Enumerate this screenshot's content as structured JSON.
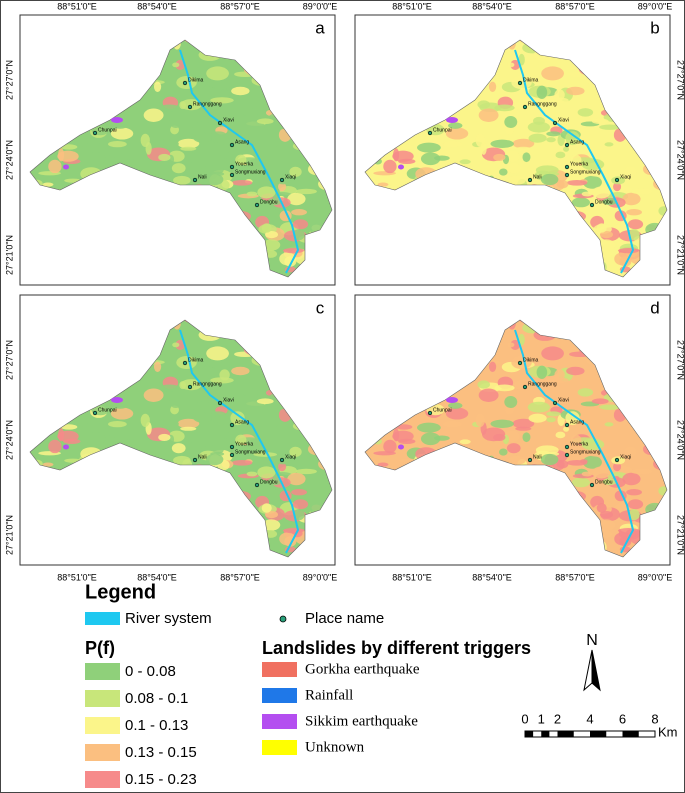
{
  "panels": [
    {
      "label": "a"
    },
    {
      "label": "b"
    },
    {
      "label": "c"
    },
    {
      "label": "d"
    }
  ],
  "lon_labels": [
    "88°51'0\"E",
    "88°54'0\"E",
    "88°57'0\"E",
    "89°0'0\"E"
  ],
  "lat_labels": [
    "27°27'0\"N",
    "27°24'0\"N",
    "27°21'0\"N"
  ],
  "places": [
    "Chunpai",
    "Dikima",
    "Rangnggang",
    "Xiavi",
    "Asang",
    "Youerka",
    "Songmuxiang",
    "Nali",
    "Xiaqi",
    "Dongbu"
  ],
  "legend": {
    "title": "Legend",
    "river": {
      "label": "River system",
      "color": "#1ec8f0"
    },
    "place_name": "Place name",
    "pf_title": "P(f)",
    "pf_classes": [
      {
        "label": "0 - 0.08",
        "color": "#8fd07a"
      },
      {
        "label": "0.08 - 0.1",
        "color": "#c8e67a"
      },
      {
        "label": "0.1 - 0.13",
        "color": "#fbf58a"
      },
      {
        "label": "0.13 - 0.15",
        "color": "#fbbf80"
      },
      {
        "label": "0.15 - 0.23",
        "color": "#f68a8a"
      }
    ],
    "trigger_title": "Landslides by different triggers",
    "triggers": [
      {
        "label": "Gorkha earthquake",
        "color": "#f07060"
      },
      {
        "label": "Rainfall",
        "color": "#1f78e8"
      },
      {
        "label": "Sikkim earthquake",
        "color": "#b44ef0"
      },
      {
        "label": "Unknown",
        "color": "#ffff00"
      }
    ]
  },
  "north": "N",
  "scale": {
    "labels": [
      0,
      1,
      2,
      4,
      6,
      8
    ],
    "unit": "Km"
  }
}
